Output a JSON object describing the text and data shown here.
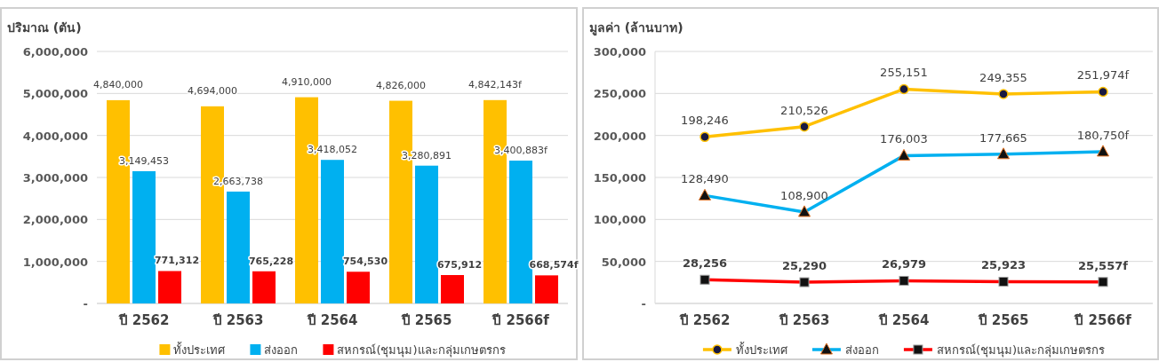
{
  "chart_data": [
    {
      "type": "bar",
      "ylabel": "ปริมาณ (ตัน)",
      "categories": [
        "ปี 2562",
        "ปี 2563",
        "ปี 2564",
        "ปี 2565",
        "ปี 2566f"
      ],
      "series": [
        {
          "name": "ทั้งประเทศ",
          "color": "#ffc000",
          "values": [
            4840000,
            4694000,
            4910000,
            4826000,
            4842143
          ],
          "value_labels": [
            "4,840,000",
            "4,694,000",
            "4,910,000",
            "4,826,000",
            "4,842,143f"
          ]
        },
        {
          "name": "ส่งออก",
          "color": "#00b0f0",
          "values": [
            3149453,
            2663738,
            3418052,
            3280891,
            3400883
          ],
          "value_labels": [
            "3,149,453",
            "2,663,738",
            "3,418,052",
            "3,280,891",
            "3,400,883f"
          ]
        },
        {
          "name": "สหกรณ์(ชุมนุม)และกลุ่มเกษตรกร",
          "color": "#ff0000",
          "values": [
            771312,
            765228,
            754530,
            675912,
            668574
          ],
          "value_labels": [
            "771,312",
            "765,228",
            "754,530",
            "675,912",
            "668,574f"
          ]
        }
      ],
      "ylim": [
        0,
        6000000
      ],
      "yticks": [
        {
          "value": 0,
          "label": "-"
        },
        {
          "value": 1000000,
          "label": "1,000,000"
        },
        {
          "value": 2000000,
          "label": "2,000,000"
        },
        {
          "value": 3000000,
          "label": "3,000,000"
        },
        {
          "value": 4000000,
          "label": "4,000,000"
        },
        {
          "value": 5000000,
          "label": "5,000,000"
        },
        {
          "value": 6000000,
          "label": "6,000,000"
        }
      ],
      "grid": "y",
      "legend": "bottom"
    },
    {
      "type": "line",
      "ylabel": "มูลค่า (ล้านบาท)",
      "categories": [
        "ปี 2562",
        "ปี 2563",
        "ปี 2564",
        "ปี 2565",
        "ปี 2566f"
      ],
      "series": [
        {
          "name": "ทั้งประเทศ",
          "color": "#ffc000",
          "marker": "circle",
          "values": [
            198246,
            210526,
            255151,
            249355,
            251974
          ],
          "value_labels": [
            "198,246",
            "210,526",
            "255,151",
            "249,355",
            "251,974f"
          ]
        },
        {
          "name": "ส่งออก",
          "color": "#00b0f0",
          "marker": "triangle",
          "values": [
            128490,
            108900,
            176003,
            177665,
            180750
          ],
          "value_labels": [
            "128,490",
            "108,900",
            "176,003",
            "177,665",
            "180,750f"
          ]
        },
        {
          "name": "สหกรณ์(ชุมนุม)และกลุ่มเกษตรกร",
          "color": "#ff0000",
          "marker": "square",
          "values": [
            28256,
            25290,
            26979,
            25923,
            25557
          ],
          "value_labels": [
            "28,256",
            "25,290",
            "26,979",
            "25,923",
            "25,557f"
          ]
        }
      ],
      "ylim": [
        0,
        300000
      ],
      "yticks": [
        {
          "value": 0,
          "label": "-"
        },
        {
          "value": 50000,
          "label": "50,000"
        },
        {
          "value": 100000,
          "label": "100,000"
        },
        {
          "value": 150000,
          "label": "150,000"
        },
        {
          "value": 200000,
          "label": "200,000"
        },
        {
          "value": 250000,
          "label": "250,000"
        },
        {
          "value": 300000,
          "label": "300,000"
        }
      ],
      "grid": "y",
      "legend": "bottom"
    }
  ]
}
